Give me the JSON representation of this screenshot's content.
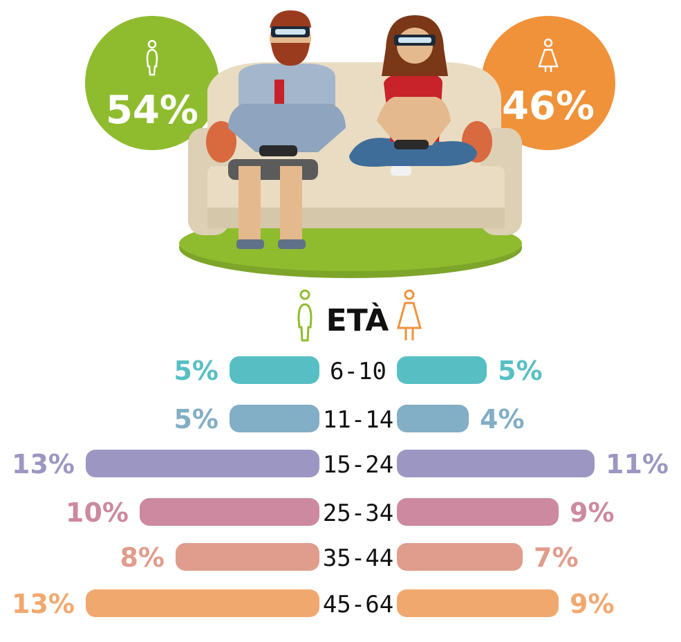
{
  "colors": {
    "male": "#8fbc2e",
    "female": "#f0923a",
    "grass": "#8fbc2e",
    "rows": [
      "#57bfc4",
      "#82aec6",
      "#9b97c2",
      "#cc89a0",
      "#e09c8c",
      "#f1a86f"
    ]
  },
  "icons": {
    "male": "male-person-icon",
    "female": "female-person-icon"
  },
  "header": {
    "male_share": "54%",
    "female_share": "46%"
  },
  "chart_data": {
    "type": "bar",
    "orientation": "horizontal-butterfly",
    "title": "ETÀ",
    "categories": [
      "6-10",
      "11-14",
      "15-24",
      "25-34",
      "35-44",
      "45-64"
    ],
    "series": [],
    "values_male": [
      5,
      5,
      13,
      10,
      8,
      13
    ],
    "values_female": [
      5,
      4,
      11,
      9,
      7,
      9
    ],
    "labels_male": [
      "5%",
      "5%",
      "13%",
      "10%",
      "8%",
      "13%"
    ],
    "labels_female": [
      "5%",
      "4%",
      "11%",
      "9%",
      "7%",
      "9%"
    ],
    "gender_split": {
      "male": 54,
      "female": 46
    }
  }
}
